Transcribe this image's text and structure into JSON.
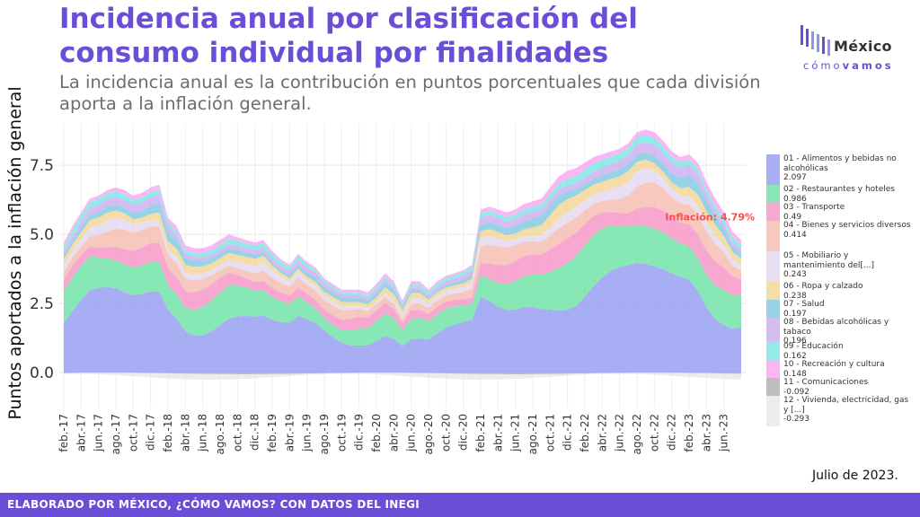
{
  "header": {
    "title": "Incidencia anual por clasificación del consumo individual por finalidades",
    "subtitle": "La incidencia anual es la contribución en puntos porcentuales que cada división aporta a la inflación general."
  },
  "logo": {
    "name": "México",
    "sub_a": "cómo",
    "sub_b": "vamos"
  },
  "footer": {
    "text": "ELABORADO POR MÉXICO, ¿CÓMO VAMOS? CON DATOS DEL INEGI",
    "date_note": "Julio de 2023."
  },
  "colors": {
    "accent": "#6a4fd6",
    "series": [
      "#8b93ef",
      "#5fe09c",
      "#f58ac1",
      "#f4b7a8",
      "#e0d5ee",
      "#f1d28a",
      "#74c3de",
      "#c7a5ef",
      "#6fe3e0",
      "#f7a0f0",
      "#a8a8a8",
      "#e6e6e6"
    ]
  },
  "chart_data": {
    "type": "area",
    "stacked": true,
    "ylabel": "Puntos aportados a la inflación general",
    "ylim": [
      -1.3,
      9.0
    ],
    "yticks": [
      0.0,
      2.5,
      5.0,
      7.5
    ],
    "ytick_labels": [
      "0.0",
      "2.5",
      "5.0",
      "7.5"
    ],
    "grid": true,
    "legend_position": "right",
    "x_tick_labels": [
      "feb.-17",
      "abr.-17",
      "jun.-17",
      "ago.-17",
      "oct.-17",
      "dic.-17",
      "feb.-18",
      "abr.-18",
      "jun.-18",
      "ago.-18",
      "oct.-18",
      "dic.-18",
      "feb.-19",
      "abr.-19",
      "jun.-19",
      "ago.-19",
      "oct.-19",
      "dic.-19",
      "feb.-20",
      "abr.-20",
      "jun.-20",
      "ago.-20",
      "oct.-20",
      "dic.-20",
      "feb.-21",
      "abr.-21",
      "jun.-21",
      "ago.-21",
      "oct.-21",
      "dic.-21",
      "feb.-22",
      "abr.-22",
      "jun.-22",
      "ago.-22",
      "oct.-22",
      "dic.-22",
      "feb.-23",
      "abr.-23",
      "jun.-23"
    ],
    "annotation": {
      "text": "Inflación: 4.79%",
      "value": 4.79
    },
    "total_profile": [
      4.7,
      5.3,
      5.8,
      6.3,
      6.4,
      6.6,
      6.7,
      6.6,
      6.4,
      6.5,
      6.7,
      6.8,
      5.6,
      5.3,
      4.6,
      4.5,
      4.5,
      4.6,
      4.8,
      5.0,
      4.9,
      4.8,
      4.7,
      4.8,
      4.4,
      4.1,
      3.9,
      4.3,
      4.0,
      3.8,
      3.4,
      3.2,
      3.0,
      3.0,
      3.0,
      2.9,
      3.2,
      3.6,
      3.3,
      2.6,
      3.3,
      3.3,
      3.0,
      3.3,
      3.5,
      3.6,
      3.7,
      3.9,
      5.9,
      6.0,
      5.9,
      5.8,
      5.9,
      6.1,
      6.2,
      6.3,
      6.7,
      7.1,
      7.3,
      7.4,
      7.6,
      7.8,
      7.9,
      8.0,
      8.1,
      8.3,
      8.7,
      8.8,
      8.7,
      8.4,
      8.0,
      7.8,
      7.9,
      7.6,
      6.9,
      6.3,
      5.8,
      5.1,
      4.8
    ],
    "series": [
      {
        "name": "01 - Alimentos y bebidas no alcohólicas",
        "last_value": "2.097"
      },
      {
        "name": "02 - Restaurantes y hoteles",
        "last_value": "0.986"
      },
      {
        "name": "03 - Transporte",
        "last_value": "0.49"
      },
      {
        "name": "04 - Bienes y servicios diversos",
        "last_value": "0.414"
      },
      {
        "name": "05 - Mobiliario y mantenimiento del[...]",
        "last_value": "0.243"
      },
      {
        "name": "06 - Ropa y calzado",
        "last_value": "0.238"
      },
      {
        "name": "07 - Salud",
        "last_value": "0.197"
      },
      {
        "name": "08 - Bebidas alcohólicas y tabaco",
        "last_value": "0.196"
      },
      {
        "name": "09 - Educación",
        "last_value": "0.162"
      },
      {
        "name": "10 - Recreación y cultura",
        "last_value": "0.148"
      },
      {
        "name": "11 - Comunicaciones",
        "last_value": "-0.092"
      },
      {
        "name": "12 - Vivienda, electricidad, gas y [...]",
        "last_value": "-0.293"
      }
    ]
  }
}
